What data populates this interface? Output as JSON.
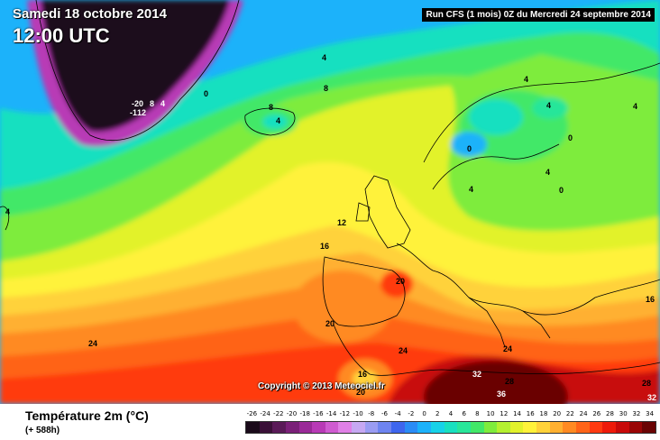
{
  "header": {
    "date": "Samedi 18 octobre 2014",
    "time": "12:00 UTC",
    "run": "Run CFS (1 mois) 0Z du Mercredi 24 septembre 2014"
  },
  "copyright": "Copyright © 2013 Meteociel.fr",
  "legend": {
    "title": "Température 2m (°C)",
    "subtitle": "(+ 588h)",
    "scale": [
      {
        "label": "-26",
        "color": "#1a0a1a"
      },
      {
        "label": "-24",
        "color": "#3a1038"
      },
      {
        "label": "-22",
        "color": "#5a1a58"
      },
      {
        "label": "-20",
        "color": "#7a2078"
      },
      {
        "label": "-18",
        "color": "#9a2a98"
      },
      {
        "label": "-16",
        "color": "#b83ab6"
      },
      {
        "label": "-14",
        "color": "#cf5bd0"
      },
      {
        "label": "-12",
        "color": "#e080e6"
      },
      {
        "label": "-10",
        "color": "#c6a8f2"
      },
      {
        "label": "-8",
        "color": "#9a9cf2"
      },
      {
        "label": "-6",
        "color": "#6e84f0"
      },
      {
        "label": "-4",
        "color": "#3e66ee"
      },
      {
        "label": "-2",
        "color": "#2a8cf6"
      },
      {
        "label": "0",
        "color": "#1cb2fa"
      },
      {
        "label": "2",
        "color": "#16d2e8"
      },
      {
        "label": "4",
        "color": "#18e0c0"
      },
      {
        "label": "6",
        "color": "#28e69a"
      },
      {
        "label": "8",
        "color": "#42e868"
      },
      {
        "label": "10",
        "color": "#7eec3c"
      },
      {
        "label": "12",
        "color": "#b4f030"
      },
      {
        "label": "14",
        "color": "#e2f22c"
      },
      {
        "label": "16",
        "color": "#fff23a"
      },
      {
        "label": "18",
        "color": "#ffd23a"
      },
      {
        "label": "20",
        "color": "#ffb030"
      },
      {
        "label": "22",
        "color": "#ff8a22"
      },
      {
        "label": "24",
        "color": "#ff6418"
      },
      {
        "label": "26",
        "color": "#ff3a10"
      },
      {
        "label": "28",
        "color": "#ee1a0a"
      },
      {
        "label": "30",
        "color": "#c80a0a"
      },
      {
        "label": "32",
        "color": "#9a0606"
      },
      {
        "label": "34",
        "color": "#6a0404"
      }
    ]
  },
  "map_labels": {
    "l_neg20": "-20",
    "l_8a": "8",
    "l_4a": "4",
    "l_neg1": "-1",
    "l_12a": "12",
    "l_0a": "0",
    "l_4b": "4",
    "l_8b": "8",
    "l_8c": "8",
    "l_4c": "4",
    "l_4d": "4",
    "l_12b": "12",
    "l_16a": "16",
    "l_20a": "20",
    "l_20b": "20",
    "l_24a": "24",
    "l_24b": "24",
    "l_24c": "24",
    "l_16b": "16",
    "l_20c": "20",
    "l_32a": "32",
    "l_28a": "28",
    "l_36a": "36",
    "l_28b": "28",
    "l_32b": "32",
    "l_4e": "4",
    "l_0b": "0",
    "l_0c": "0",
    "l_4f": "4",
    "l_4g": "4",
    "l_4h": "4",
    "l_0d": "0",
    "l_4i": "4",
    "l_16c": "16"
  }
}
